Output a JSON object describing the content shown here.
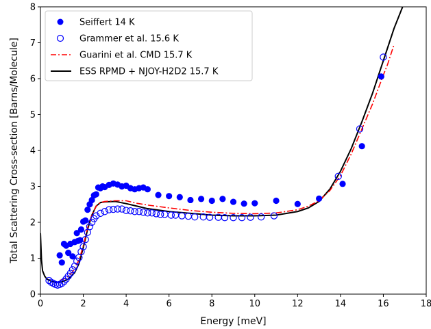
{
  "chart_data": {
    "type": "scatter",
    "title": "",
    "xlabel": "Energy [meV]",
    "ylabel": "Total Scattering Cross-section [Barns/Molecule]",
    "xlim": [
      0,
      18
    ],
    "ylim": [
      0,
      8
    ],
    "xticks": [
      "0",
      "2",
      "4",
      "6",
      "8",
      "10",
      "12",
      "14",
      "16",
      "18"
    ],
    "yticks": [
      "0",
      "1",
      "2",
      "3",
      "4",
      "5",
      "6",
      "7",
      "8"
    ],
    "grid": false,
    "legend_position": "top-left",
    "series": [
      {
        "name": "Seiffert 14 K",
        "kind": "scatter-filled",
        "color": "#0000ff",
        "points": [
          [
            0.9,
            1.08
          ],
          [
            1.0,
            0.88
          ],
          [
            1.1,
            1.4
          ],
          [
            1.2,
            1.35
          ],
          [
            1.3,
            1.15
          ],
          [
            1.4,
            1.4
          ],
          [
            1.5,
            1.05
          ],
          [
            1.6,
            1.45
          ],
          [
            1.7,
            1.7
          ],
          [
            1.75,
            1.48
          ],
          [
            1.85,
            1.5
          ],
          [
            1.9,
            1.8
          ],
          [
            2.0,
            2.02
          ],
          [
            2.1,
            2.05
          ],
          [
            2.2,
            2.35
          ],
          [
            2.3,
            2.5
          ],
          [
            2.4,
            2.62
          ],
          [
            2.5,
            2.75
          ],
          [
            2.6,
            2.78
          ],
          [
            2.7,
            2.97
          ],
          [
            2.8,
            2.95
          ],
          [
            2.9,
            3.0
          ],
          [
            3.0,
            2.98
          ],
          [
            3.2,
            3.04
          ],
          [
            3.4,
            3.08
          ],
          [
            3.6,
            3.05
          ],
          [
            3.8,
            3.0
          ],
          [
            4.0,
            3.02
          ],
          [
            4.2,
            2.95
          ],
          [
            4.4,
            2.92
          ],
          [
            4.6,
            2.95
          ],
          [
            4.8,
            2.97
          ],
          [
            5.0,
            2.92
          ],
          [
            5.5,
            2.76
          ],
          [
            6.0,
            2.73
          ],
          [
            6.5,
            2.7
          ],
          [
            7.0,
            2.62
          ],
          [
            7.5,
            2.65
          ],
          [
            8.0,
            2.6
          ],
          [
            8.5,
            2.65
          ],
          [
            9.0,
            2.57
          ],
          [
            9.5,
            2.52
          ],
          [
            10.0,
            2.53
          ],
          [
            11.0,
            2.6
          ],
          [
            12.0,
            2.51
          ],
          [
            13.0,
            2.66
          ],
          [
            14.1,
            3.07
          ],
          [
            15.0,
            4.12
          ],
          [
            15.9,
            6.06
          ]
        ]
      },
      {
        "name": "Grammer et al. 15.6 K",
        "kind": "scatter-open",
        "color": "#0000ff",
        "points": [
          [
            0.4,
            0.38
          ],
          [
            0.5,
            0.33
          ],
          [
            0.6,
            0.3
          ],
          [
            0.7,
            0.27
          ],
          [
            0.8,
            0.25
          ],
          [
            0.9,
            0.27
          ],
          [
            1.0,
            0.3
          ],
          [
            1.1,
            0.35
          ],
          [
            1.2,
            0.42
          ],
          [
            1.3,
            0.5
          ],
          [
            1.4,
            0.58
          ],
          [
            1.5,
            0.68
          ],
          [
            1.6,
            0.78
          ],
          [
            1.7,
            0.92
          ],
          [
            1.8,
            1.02
          ],
          [
            1.9,
            1.18
          ],
          [
            2.0,
            1.32
          ],
          [
            2.1,
            1.52
          ],
          [
            2.2,
            1.72
          ],
          [
            2.3,
            1.88
          ],
          [
            2.4,
            2.0
          ],
          [
            2.5,
            2.1
          ],
          [
            2.6,
            2.18
          ],
          [
            2.8,
            2.25
          ],
          [
            3.0,
            2.3
          ],
          [
            3.2,
            2.35
          ],
          [
            3.4,
            2.36
          ],
          [
            3.6,
            2.37
          ],
          [
            3.8,
            2.37
          ],
          [
            4.0,
            2.33
          ],
          [
            4.2,
            2.32
          ],
          [
            4.4,
            2.3
          ],
          [
            4.6,
            2.3
          ],
          [
            4.8,
            2.28
          ],
          [
            5.0,
            2.26
          ],
          [
            5.2,
            2.26
          ],
          [
            5.4,
            2.24
          ],
          [
            5.6,
            2.22
          ],
          [
            5.8,
            2.22
          ],
          [
            6.1,
            2.2
          ],
          [
            6.3,
            2.2
          ],
          [
            6.6,
            2.18
          ],
          [
            6.9,
            2.17
          ],
          [
            7.2,
            2.15
          ],
          [
            7.6,
            2.15
          ],
          [
            7.9,
            2.14
          ],
          [
            8.3,
            2.14
          ],
          [
            8.6,
            2.13
          ],
          [
            9.0,
            2.13
          ],
          [
            9.4,
            2.13
          ],
          [
            9.8,
            2.14
          ],
          [
            10.3,
            2.15
          ],
          [
            10.9,
            2.18
          ],
          [
            13.9,
            3.28
          ],
          [
            14.9,
            4.6
          ],
          [
            16.0,
            6.6
          ]
        ]
      },
      {
        "name": "Guarini et al. CMD 15.7 K",
        "kind": "line-dashdot",
        "color": "#ff0000",
        "points": [
          [
            0.9,
            0.38
          ],
          [
            1.2,
            0.45
          ],
          [
            1.5,
            0.62
          ],
          [
            1.8,
            0.95
          ],
          [
            2.0,
            1.35
          ],
          [
            2.2,
            1.85
          ],
          [
            2.4,
            2.2
          ],
          [
            2.6,
            2.45
          ],
          [
            2.8,
            2.55
          ],
          [
            3.0,
            2.58
          ],
          [
            3.5,
            2.6
          ],
          [
            4.0,
            2.6
          ],
          [
            4.5,
            2.53
          ],
          [
            5.0,
            2.48
          ],
          [
            6.0,
            2.4
          ],
          [
            7.0,
            2.33
          ],
          [
            8.0,
            2.28
          ],
          [
            9.0,
            2.25
          ],
          [
            10.0,
            2.24
          ],
          [
            11.0,
            2.26
          ],
          [
            12.0,
            2.35
          ],
          [
            12.5,
            2.45
          ],
          [
            13.0,
            2.6
          ],
          [
            13.5,
            2.88
          ],
          [
            14.0,
            3.3
          ],
          [
            14.5,
            3.9
          ],
          [
            15.0,
            4.6
          ],
          [
            15.5,
            5.3
          ],
          [
            16.0,
            6.1
          ],
          [
            16.2,
            6.4
          ],
          [
            16.5,
            6.95
          ]
        ]
      },
      {
        "name": "ESS RPMD + NJOY-H2D2 15.7 K",
        "kind": "line-solid",
        "color": "#000000",
        "points": [
          [
            0.0,
            1.7
          ],
          [
            0.05,
            0.95
          ],
          [
            0.1,
            0.65
          ],
          [
            0.2,
            0.5
          ],
          [
            0.3,
            0.42
          ],
          [
            0.5,
            0.36
          ],
          [
            0.7,
            0.33
          ],
          [
            1.0,
            0.34
          ],
          [
            1.3,
            0.42
          ],
          [
            1.6,
            0.6
          ],
          [
            1.8,
            0.85
          ],
          [
            2.0,
            1.3
          ],
          [
            2.2,
            1.8
          ],
          [
            2.4,
            2.2
          ],
          [
            2.6,
            2.45
          ],
          [
            2.8,
            2.55
          ],
          [
            3.0,
            2.57
          ],
          [
            3.5,
            2.58
          ],
          [
            4.0,
            2.52
          ],
          [
            4.5,
            2.45
          ],
          [
            5.0,
            2.38
          ],
          [
            6.0,
            2.3
          ],
          [
            7.0,
            2.25
          ],
          [
            8.0,
            2.2
          ],
          [
            9.0,
            2.18
          ],
          [
            10.0,
            2.18
          ],
          [
            11.0,
            2.2
          ],
          [
            12.0,
            2.3
          ],
          [
            12.5,
            2.4
          ],
          [
            13.0,
            2.58
          ],
          [
            13.5,
            2.92
          ],
          [
            14.0,
            3.42
          ],
          [
            14.5,
            4.05
          ],
          [
            15.0,
            4.8
          ],
          [
            15.5,
            5.6
          ],
          [
            16.0,
            6.5
          ],
          [
            16.5,
            7.4
          ],
          [
            16.9,
            8.0
          ]
        ]
      }
    ]
  }
}
